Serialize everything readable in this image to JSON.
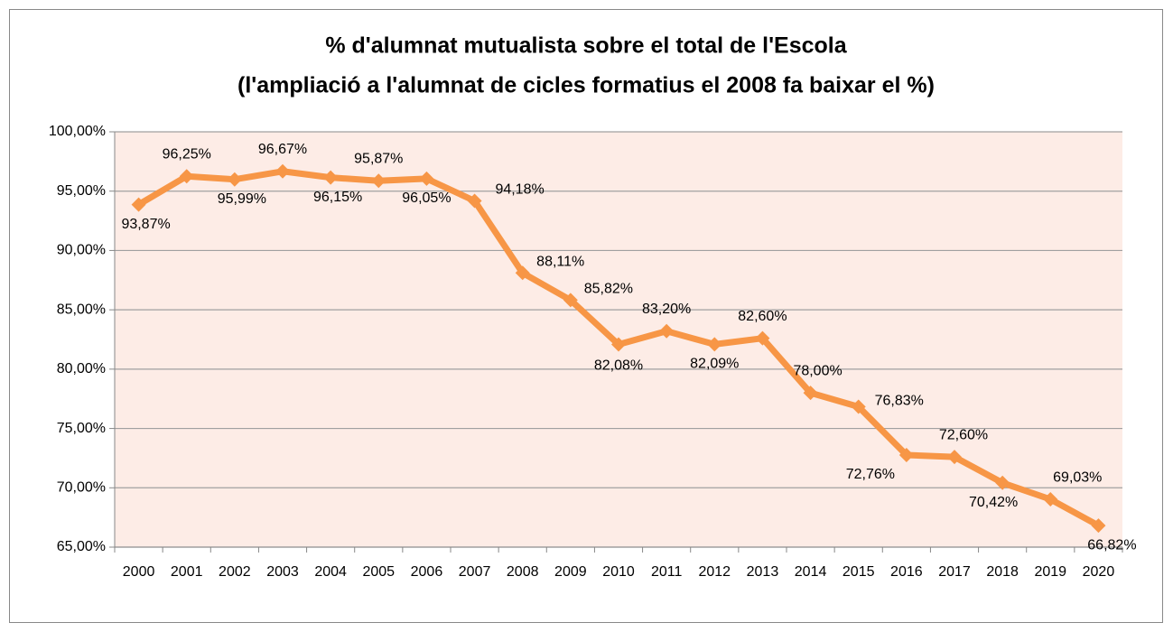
{
  "chart_data": {
    "type": "line",
    "title": "%  d'alumnat mutualista sobre el total de l'Escola",
    "subtitle": "(l'ampliació a l'alumnat de cicles formatius el 2008 fa baixar el %)",
    "categories": [
      "2000",
      "2001",
      "2002",
      "2003",
      "2004",
      "2005",
      "2006",
      "2007",
      "2008",
      "2009",
      "2010",
      "2011",
      "2012",
      "2013",
      "2014",
      "2015",
      "2016",
      "2017",
      "2018",
      "2019",
      "2020"
    ],
    "series": [
      {
        "name": "% d'alumnat mutualista",
        "color": "#f79646",
        "values": [
          93.87,
          96.25,
          95.99,
          96.67,
          96.15,
          95.87,
          96.05,
          94.18,
          88.11,
          85.82,
          82.08,
          83.2,
          82.09,
          82.6,
          78.0,
          76.83,
          72.76,
          72.6,
          70.42,
          69.03,
          66.82
        ],
        "value_labels": [
          "93,87%",
          "96,25%",
          "95,99%",
          "96,67%",
          "96,15%",
          "95,87%",
          "96,05%",
          "94,18%",
          "88,11%",
          "85,82%",
          "82,08%",
          "83,20%",
          "82,09%",
          "82,60%",
          "78,00%",
          "76,83%",
          "72,76%",
          "72,60%",
          "70,42%",
          "69,03%",
          "66,82%"
        ]
      }
    ],
    "ylim": [
      65,
      100
    ],
    "yticks": [
      {
        "value": 65,
        "label": "65,00%"
      },
      {
        "value": 70,
        "label": "70,00%"
      },
      {
        "value": 75,
        "label": "75,00%"
      },
      {
        "value": 80,
        "label": "80,00%"
      },
      {
        "value": 85,
        "label": "85,00%"
      },
      {
        "value": 90,
        "label": "90,00%"
      },
      {
        "value": 95,
        "label": "95,00%"
      },
      {
        "value": 100,
        "label": "100,00%"
      }
    ],
    "grid": true,
    "plot_background": "#fdece6"
  }
}
